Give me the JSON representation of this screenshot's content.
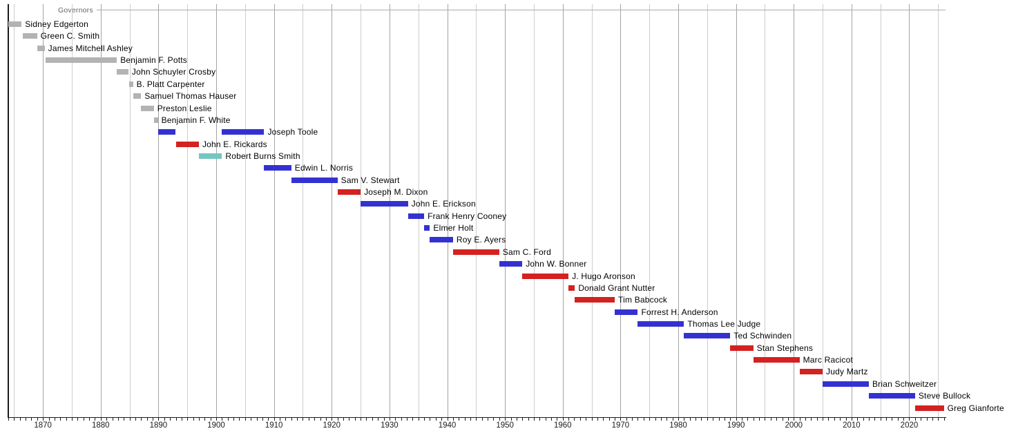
{
  "chart_data": {
    "type": "bar",
    "subtype": "gantt-timeline",
    "title": "Governors",
    "x_axis": {
      "min": 1864,
      "max": 2026.4,
      "tick_interval": 1,
      "grid_interval": 5,
      "label_interval": 10,
      "labels": [
        1870,
        1880,
        1890,
        1900,
        1910,
        1920,
        1930,
        1940,
        1950,
        1960,
        1970,
        1980,
        1990,
        2000,
        2010,
        2020
      ]
    },
    "grid": {
      "on": true,
      "decade_color": "#a3a3a3",
      "minor_color": "#cdcdcd"
    },
    "legend_position": "none",
    "colors": {
      "territorial": "#b3b3b3",
      "democratic": "#3431d2",
      "republican": "#d42121",
      "populist": "#74c6c0"
    },
    "rows": [
      {
        "label": "Sidney Edgerton",
        "party": "territorial",
        "segments": [
          [
            1864.0,
            1866.3
          ]
        ]
      },
      {
        "label": "Green C. Smith",
        "party": "territorial",
        "segments": [
          [
            1866.5,
            1869.0
          ]
        ]
      },
      {
        "label": "James Mitchell Ashley",
        "party": "territorial",
        "segments": [
          [
            1869.0,
            1870.3
          ]
        ]
      },
      {
        "label": "Benjamin F. Potts",
        "party": "territorial",
        "segments": [
          [
            1870.5,
            1882.8
          ]
        ]
      },
      {
        "label": "John Schuyler Crosby",
        "party": "territorial",
        "segments": [
          [
            1882.8,
            1884.8
          ]
        ]
      },
      {
        "label": "B. Platt Carpenter",
        "party": "territorial",
        "segments": [
          [
            1884.9,
            1885.6
          ]
        ]
      },
      {
        "label": "Samuel Thomas Hauser",
        "party": "territorial",
        "segments": [
          [
            1885.6,
            1887.0
          ]
        ]
      },
      {
        "label": "Preston Leslie",
        "party": "territorial",
        "segments": [
          [
            1887.0,
            1889.2
          ]
        ]
      },
      {
        "label": "Benjamin F. White",
        "party": "territorial",
        "segments": [
          [
            1889.2,
            1889.9
          ]
        ]
      },
      {
        "label": "Joseph Toole",
        "party": "democratic",
        "segments": [
          [
            1889.9,
            1893.0
          ],
          [
            1901.0,
            1908.3
          ]
        ]
      },
      {
        "label": "John E. Rickards",
        "party": "republican",
        "segments": [
          [
            1893.0,
            1897.0
          ]
        ]
      },
      {
        "label": "Robert Burns Smith",
        "party": "populist",
        "segments": [
          [
            1897.0,
            1901.0
          ]
        ]
      },
      {
        "label": "Edwin L. Norris",
        "party": "democratic",
        "segments": [
          [
            1908.3,
            1913.0
          ]
        ]
      },
      {
        "label": "Sam V. Stewart",
        "party": "democratic",
        "segments": [
          [
            1913.0,
            1921.0
          ]
        ]
      },
      {
        "label": "Joseph M. Dixon",
        "party": "republican",
        "segments": [
          [
            1921.0,
            1925.0
          ]
        ]
      },
      {
        "label": "John E. Erickson",
        "party": "democratic",
        "segments": [
          [
            1925.0,
            1933.2
          ]
        ]
      },
      {
        "label": "Frank Henry Cooney",
        "party": "democratic",
        "segments": [
          [
            1933.2,
            1936.0
          ]
        ]
      },
      {
        "label": "Elmer Holt",
        "party": "democratic",
        "segments": [
          [
            1936.0,
            1937.0
          ]
        ]
      },
      {
        "label": "Roy E. Ayers",
        "party": "democratic",
        "segments": [
          [
            1937.0,
            1941.0
          ]
        ]
      },
      {
        "label": "Sam C. Ford",
        "party": "republican",
        "segments": [
          [
            1941.0,
            1949.0
          ]
        ]
      },
      {
        "label": "John W. Bonner",
        "party": "democratic",
        "segments": [
          [
            1949.0,
            1953.0
          ]
        ]
      },
      {
        "label": "J. Hugo Aronson",
        "party": "republican",
        "segments": [
          [
            1953.0,
            1961.0
          ]
        ]
      },
      {
        "label": "Donald Grant Nutter",
        "party": "republican",
        "segments": [
          [
            1961.0,
            1962.1
          ]
        ]
      },
      {
        "label": "Tim Babcock",
        "party": "republican",
        "segments": [
          [
            1962.1,
            1969.0
          ]
        ]
      },
      {
        "label": "Forrest H. Anderson",
        "party": "democratic",
        "segments": [
          [
            1969.0,
            1973.0
          ]
        ]
      },
      {
        "label": "Thomas Lee Judge",
        "party": "democratic",
        "segments": [
          [
            1973.0,
            1981.0
          ]
        ]
      },
      {
        "label": "Ted Schwinden",
        "party": "democratic",
        "segments": [
          [
            1981.0,
            1989.0
          ]
        ]
      },
      {
        "label": "Stan Stephens",
        "party": "republican",
        "segments": [
          [
            1989.0,
            1993.0
          ]
        ]
      },
      {
        "label": "Marc Racicot",
        "party": "republican",
        "segments": [
          [
            1993.0,
            2001.0
          ]
        ]
      },
      {
        "label": "Judy Martz",
        "party": "republican",
        "segments": [
          [
            2001.0,
            2005.0
          ]
        ]
      },
      {
        "label": "Brian Schweitzer",
        "party": "democratic",
        "segments": [
          [
            2005.0,
            2013.0
          ]
        ]
      },
      {
        "label": "Steve Bullock",
        "party": "democratic",
        "segments": [
          [
            2013.0,
            2021.0
          ]
        ]
      },
      {
        "label": "Greg Gianforte",
        "party": "republican",
        "segments": [
          [
            2021.0,
            2026.0
          ]
        ]
      }
    ]
  }
}
